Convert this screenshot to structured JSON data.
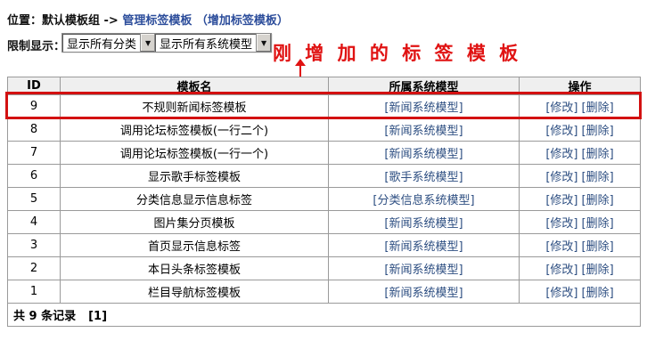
{
  "breadcrumb": {
    "prefix": "位置：默认模板组 -> ",
    "manage_link": "管理标签模板",
    "add_link": "（增加标签模板）"
  },
  "filter": {
    "label": "限制显示：",
    "category_select_value": "显示所有分类",
    "model_select_value": "显示所有系统模型",
    "dropdown_arrow_icon": "▼"
  },
  "annotation": {
    "text": "刚 增 加 的 标 签 模 板",
    "color": "#e01212"
  },
  "table": {
    "headers": {
      "id": "ID",
      "name": "模板名",
      "model": "所属系统模型",
      "operation": "操作"
    },
    "actions": {
      "edit": "[修改]",
      "delete": "[删除]"
    },
    "rows": [
      {
        "id": "9",
        "name": "不规则新闻标签模板",
        "model": "[新闻系统模型]"
      },
      {
        "id": "8",
        "name": "调用论坛标签模板(一行二个)",
        "model": "[新闻系统模型]"
      },
      {
        "id": "7",
        "name": "调用论坛标签模板(一行一个)",
        "model": "[新闻系统模型]"
      },
      {
        "id": "6",
        "name": "显示歌手标签模板",
        "model": "[歌手系统模型]"
      },
      {
        "id": "5",
        "name": "分类信息显示信息标签",
        "model": "[分类信息系统模型]"
      },
      {
        "id": "4",
        "name": "图片集分页模板",
        "model": "[新闻系统模型]"
      },
      {
        "id": "3",
        "name": "首页显示信息标签",
        "model": "[新闻系统模型]"
      },
      {
        "id": "2",
        "name": "本日头条标签模板",
        "model": "[新闻系统模型]"
      },
      {
        "id": "1",
        "name": "栏目导航标签模板",
        "model": "[新闻系统模型]"
      }
    ],
    "footer": {
      "count_text": "共 9 条记录",
      "page": "[1]"
    }
  },
  "colors": {
    "accent_red": "#d31111",
    "link_blue": "#2e4f82",
    "breadcrumb_link_blue": "#2c4d9b",
    "header_bg": "#efefef",
    "border_gray": "#9a9a9a"
  }
}
